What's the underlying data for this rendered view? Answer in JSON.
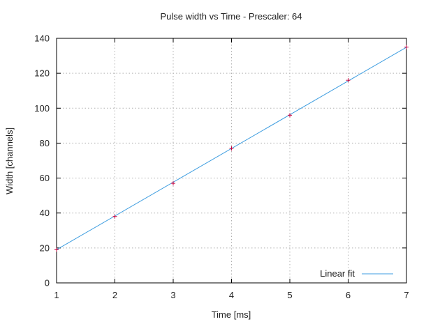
{
  "chart_data": {
    "type": "line",
    "title": "Pulse width vs Time - Prescaler: 64",
    "xlabel": "Time [ms]",
    "ylabel": "Width [channels]",
    "xlim": [
      1,
      7
    ],
    "ylim": [
      0,
      140
    ],
    "x_ticks": [
      "1",
      "2",
      "3",
      "4",
      "5",
      "6",
      "7"
    ],
    "y_ticks": [
      "0",
      "20",
      "40",
      "60",
      "80",
      "100",
      "120",
      "140"
    ],
    "grid": true,
    "legend_position": "bottom-right",
    "points": {
      "x": [
        1,
        2,
        3,
        4,
        5,
        6,
        7
      ],
      "y": [
        19,
        38,
        57,
        77,
        96,
        116,
        135
      ],
      "color": "#c8003c",
      "marker": "plus"
    },
    "fit": {
      "name": "Linear fit",
      "x": [
        1,
        7
      ],
      "y": [
        19.0,
        134.9
      ],
      "color": "#3d9de0"
    }
  }
}
